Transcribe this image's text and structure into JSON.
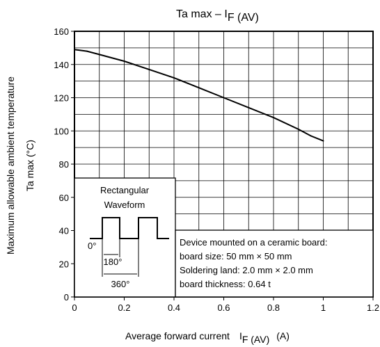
{
  "chart_data": {
    "type": "line",
    "title": "Ta max – I",
    "title_sub": "F (AV)",
    "ylabel_line1": "Maximum allowable ambient temperature",
    "ylabel_line2": "Ta max   (°C)",
    "xlabel": "Average forward current",
    "xlabel_symbol": "I",
    "xlabel_symbol_sub": "F (AV)",
    "xlabel_unit": "(A)",
    "xlim": [
      0,
      1.2
    ],
    "ylim": [
      0,
      160
    ],
    "x_minor_step": 0.1,
    "y_minor_step": 10,
    "x_ticks": [
      {
        "value": 0,
        "label": "0"
      },
      {
        "value": 0.2,
        "label": "0.2"
      },
      {
        "value": 0.4,
        "label": "0.4"
      },
      {
        "value": 0.6,
        "label": "0.6"
      },
      {
        "value": 0.8,
        "label": "0.8"
      },
      {
        "value": 1.0,
        "label": "1"
      },
      {
        "value": 1.2,
        "label": "1.2"
      }
    ],
    "y_ticks": [
      {
        "value": 0,
        "label": "0"
      },
      {
        "value": 20,
        "label": "20"
      },
      {
        "value": 40,
        "label": "40"
      },
      {
        "value": 60,
        "label": "60"
      },
      {
        "value": 80,
        "label": "80"
      },
      {
        "value": 100,
        "label": "100"
      },
      {
        "value": 120,
        "label": "120"
      },
      {
        "value": 140,
        "label": "140"
      },
      {
        "value": 160,
        "label": "160"
      }
    ],
    "grid": true,
    "series": [
      {
        "x": [
          0,
          0.05,
          0.1,
          0.2,
          0.3,
          0.4,
          0.5,
          0.6,
          0.7,
          0.8,
          0.9,
          0.95,
          1.0
        ],
        "y": [
          149,
          148,
          146,
          142,
          137,
          132,
          126,
          120,
          114,
          108,
          101,
          97,
          94
        ]
      }
    ],
    "waveform_box": {
      "title_line1": "Rectangular",
      "title_line2": "Waveform",
      "angle_zero": "0°",
      "angle_on": "180°",
      "angle_period": "360°"
    },
    "device_note": [
      "Device mounted on a ceramic board:",
      "board size: 50 mm × 50 mm",
      "Soldering land: 2.0 mm × 2.0 mm",
      "board thickness: 0.64 t"
    ]
  }
}
